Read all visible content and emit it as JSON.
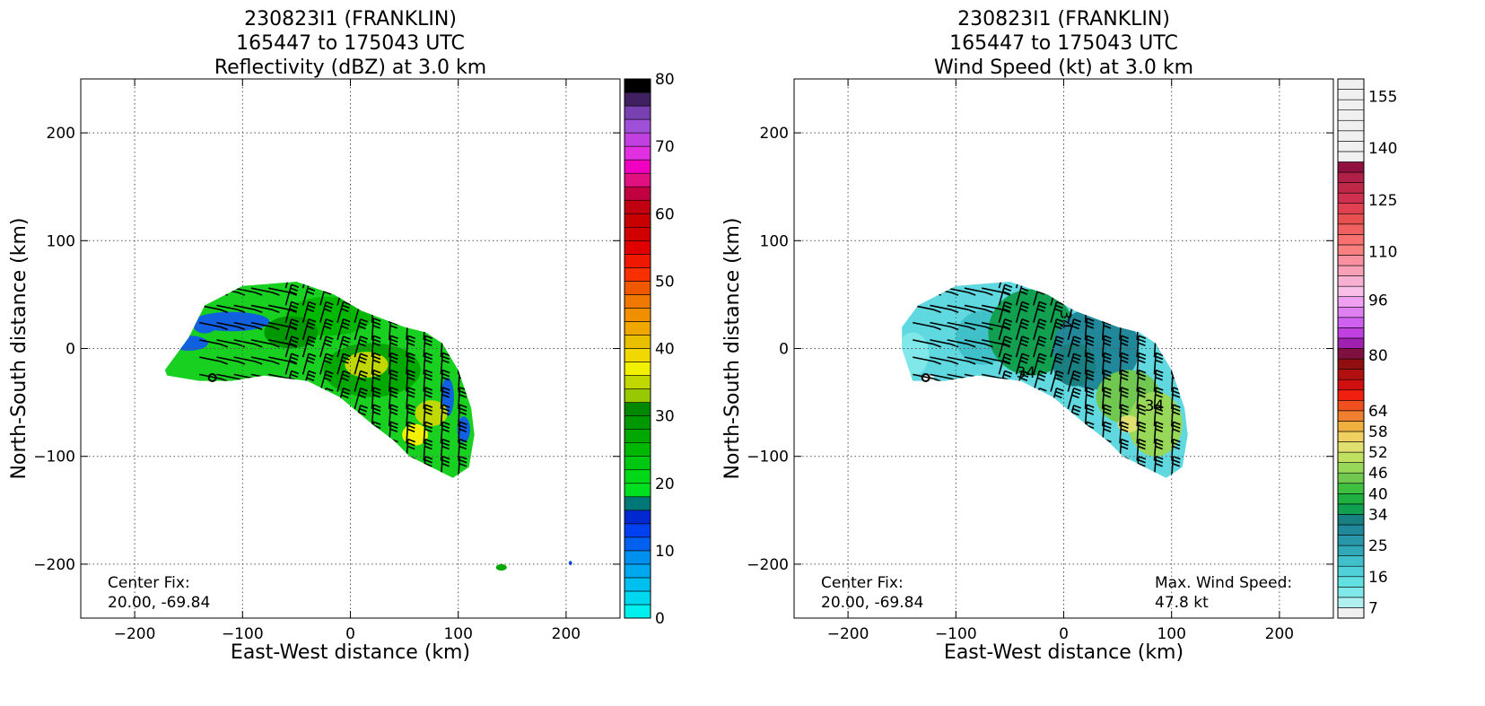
{
  "chart_data": [
    {
      "type": "heatmap",
      "title_lines": [
        "230823I1 (FRANKLIN)",
        "165447 to 175043 UTC",
        "Reflectivity (dBZ) at 3.0 km"
      ],
      "xlabel": "East-West distance (km)",
      "ylabel": "North-South distance (km)",
      "xlim": [
        -250,
        250
      ],
      "ylim": [
        -250,
        250
      ],
      "xticks": [
        -200,
        -100,
        0,
        100,
        200
      ],
      "yticks": [
        -200,
        -100,
        0,
        100,
        200
      ],
      "grid": true,
      "center_fix_label": "Center Fix:",
      "center_fix_value": "20.00, -69.84",
      "center_fix_xy": [
        -128,
        -27
      ],
      "colorbar": {
        "min": 0,
        "max": 80,
        "step": 2.5,
        "tick_labels": [
          "0",
          "10",
          "20",
          "30",
          "40",
          "50",
          "60",
          "70",
          "80"
        ],
        "colors": [
          "#00f0f0",
          "#00d8f0",
          "#00c0f0",
          "#00a8f0",
          "#0090f0",
          "#0060f0",
          "#0040f0",
          "#0028d0",
          "#007878",
          "#00e020",
          "#00d818",
          "#00c810",
          "#00b800",
          "#00a800",
          "#009800",
          "#008800",
          "#98c800",
          "#c0d800",
          "#f0f000",
          "#f0d800",
          "#e8c000",
          "#f0a800",
          "#f09000",
          "#f07800",
          "#f05800",
          "#f83000",
          "#f01800",
          "#e00000",
          "#d00000",
          "#c80000",
          "#c00010",
          "#c00040",
          "#e01080",
          "#f000c0",
          "#e030e0",
          "#c040e0",
          "#a050d8",
          "#7840b0",
          "#402060",
          "#000000"
        ]
      },
      "region": {
        "polygon": [
          [
            -170,
            -25
          ],
          [
            -172,
            -20
          ],
          [
            -150,
            10
          ],
          [
            -135,
            40
          ],
          [
            -100,
            58
          ],
          [
            -50,
            62
          ],
          [
            -15,
            50
          ],
          [
            10,
            35
          ],
          [
            50,
            20
          ],
          [
            70,
            15
          ],
          [
            85,
            5
          ],
          [
            100,
            -20
          ],
          [
            112,
            -55
          ],
          [
            115,
            -80
          ],
          [
            110,
            -110
          ],
          [
            95,
            -120
          ],
          [
            75,
            -110
          ],
          [
            55,
            -100
          ],
          [
            40,
            -85
          ],
          [
            20,
            -70
          ],
          [
            -10,
            -45
          ],
          [
            -40,
            -30
          ],
          [
            -80,
            -25
          ],
          [
            -110,
            -30
          ],
          [
            -140,
            -30
          ]
        ],
        "base_color": "#18d020",
        "patches": [
          {
            "c": [
              -110,
              25
            ],
            "rx": 35,
            "ry": 9,
            "color": "#1060e0"
          },
          {
            "c": [
              -150,
              5
            ],
            "rx": 18,
            "ry": 7,
            "color": "#1060e0"
          },
          {
            "c": [
              -135,
              20
            ],
            "rx": 10,
            "ry": 6,
            "color": "#1060e0"
          },
          {
            "c": [
              90,
              -45
            ],
            "rx": 6,
            "ry": 18,
            "color": "#1060e0"
          },
          {
            "c": [
              105,
              -75
            ],
            "rx": 6,
            "ry": 12,
            "color": "#1060e0"
          },
          {
            "c": [
              -20,
              30
            ],
            "rx": 40,
            "ry": 18,
            "color": "#00b800"
          },
          {
            "c": [
              20,
              -20
            ],
            "rx": 45,
            "ry": 25,
            "color": "#00a800"
          },
          {
            "c": [
              15,
              -15
            ],
            "rx": 20,
            "ry": 12,
            "color": "#c0d800"
          },
          {
            "c": [
              60,
              -80
            ],
            "rx": 12,
            "ry": 10,
            "color": "#f0f000"
          },
          {
            "c": [
              75,
              -60
            ],
            "rx": 15,
            "ry": 12,
            "color": "#c0d800"
          },
          {
            "c": [
              -55,
              15
            ],
            "rx": 25,
            "ry": 15,
            "color": "#009800"
          }
        ],
        "specks": [
          {
            "c": [
              140,
              -203
            ],
            "rx": 5,
            "ry": 3,
            "color": "#00a800"
          },
          {
            "c": [
              204,
              -199
            ],
            "rx": 1.5,
            "ry": 2,
            "color": "#0040f0"
          }
        ]
      }
    },
    {
      "type": "heatmap",
      "title_lines": [
        "230823I1 (FRANKLIN)",
        "165447 to 175043 UTC",
        "Wind Speed (kt) at 3.0 km"
      ],
      "xlabel": "East-West distance (km)",
      "ylabel": "North-South distance (km)",
      "xlim": [
        -250,
        250
      ],
      "ylim": [
        -250,
        250
      ],
      "xticks": [
        -200,
        -100,
        0,
        100,
        200
      ],
      "yticks": [
        -200,
        -100,
        0,
        100,
        200
      ],
      "grid": true,
      "center_fix_label": "Center Fix:",
      "center_fix_value": "20.00, -69.84",
      "center_fix_xy": [
        -128,
        -27
      ],
      "max_wind_label": "Max. Wind Speed:",
      "max_wind_value": "47.8 kt",
      "contour_labels": [
        {
          "text": "34",
          "xy": [
            -3,
            27
          ],
          "rot": 90
        },
        {
          "text": "34",
          "xy": [
            -35,
            -27
          ],
          "rot": 0
        },
        {
          "text": "34",
          "xy": [
            84,
            -58
          ],
          "rot": 0
        }
      ],
      "colorbar": {
        "min": 4,
        "max": 160,
        "step": 3,
        "tick_labels": [
          "7",
          "16",
          "25",
          "34",
          "40",
          "46",
          "52",
          "58",
          "64",
          "80",
          "96",
          "110",
          "125",
          "140",
          "155"
        ],
        "colors": [
          "#f0f0f0",
          "#b0f0f0",
          "#80e8e8",
          "#60e0e0",
          "#50d0d8",
          "#40c0c8",
          "#30a8b8",
          "#2898a8",
          "#208898",
          "#188080",
          "#10a050",
          "#20b040",
          "#40c040",
          "#70c850",
          "#98d858",
          "#c0e060",
          "#e0e070",
          "#f0d060",
          "#f0b040",
          "#f08030",
          "#f05020",
          "#f02010",
          "#d01010",
          "#b01010",
          "#901010",
          "#801040",
          "#a020b0",
          "#c040e0",
          "#d060f0",
          "#e080f0",
          "#f0a0f0",
          "#f8c0e8",
          "#f8b0d0",
          "#f8a0b8",
          "#f890a0",
          "#f88080",
          "#f87070",
          "#f06060",
          "#e85050",
          "#e04050",
          "#d03050",
          "#c02848",
          "#b02048",
          "#901040",
          "#f0f0f0",
          "#f0f0f0",
          "#f0f0f0",
          "#f0f0f0",
          "#f0f0f0",
          "#f0f0f0",
          "#f0f0f0",
          "#f0f0f0"
        ]
      },
      "region": {
        "polygon": [
          [
            -150,
            0
          ],
          [
            -150,
            20
          ],
          [
            -135,
            40
          ],
          [
            -100,
            58
          ],
          [
            -50,
            62
          ],
          [
            -15,
            50
          ],
          [
            10,
            35
          ],
          [
            50,
            20
          ],
          [
            70,
            15
          ],
          [
            85,
            5
          ],
          [
            100,
            -20
          ],
          [
            112,
            -55
          ],
          [
            115,
            -80
          ],
          [
            110,
            -110
          ],
          [
            95,
            -120
          ],
          [
            75,
            -110
          ],
          [
            55,
            -100
          ],
          [
            40,
            -85
          ],
          [
            20,
            -70
          ],
          [
            -10,
            -45
          ],
          [
            -40,
            -30
          ],
          [
            -80,
            -25
          ],
          [
            -110,
            -30
          ],
          [
            -140,
            -30
          ]
        ],
        "base_color": "#60d8e0",
        "patches": [
          {
            "c": [
              -140,
              -5
            ],
            "rx": 15,
            "ry": 20,
            "color": "#80e8e8"
          },
          {
            "c": [
              -75,
              10
            ],
            "rx": 25,
            "ry": 25,
            "color": "#40c0c8"
          },
          {
            "c": [
              -30,
              15
            ],
            "rx": 40,
            "ry": 40,
            "color": "#10a050"
          },
          {
            "c": [
              30,
              0
            ],
            "rx": 40,
            "ry": 38,
            "color": "#208898"
          },
          {
            "c": [
              10,
              -15
            ],
            "rx": 20,
            "ry": 20,
            "color": "#188080"
          },
          {
            "c": [
              60,
              -45
            ],
            "rx": 30,
            "ry": 25,
            "color": "#70c850"
          },
          {
            "c": [
              85,
              -70
            ],
            "rx": 25,
            "ry": 30,
            "color": "#98d858"
          },
          {
            "c": [
              60,
              -70
            ],
            "rx": 10,
            "ry": 8,
            "color": "#e0e070"
          },
          {
            "c": [
              -125,
              -30
            ],
            "rx": 6,
            "ry": 6,
            "color": "#f0f0f0"
          }
        ],
        "specks": []
      }
    }
  ]
}
